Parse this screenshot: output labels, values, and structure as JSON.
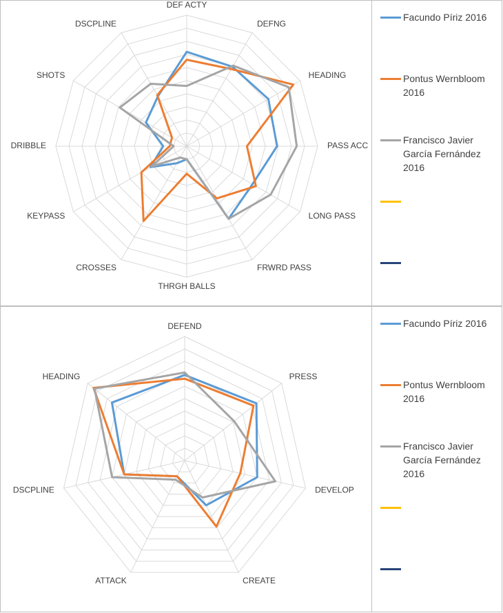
{
  "chart_data": [
    {
      "type": "radar",
      "categories": [
        "DEF ACTY",
        "DEFNG",
        "HEADING",
        "PASS ACC",
        "LONG PASS",
        "FRWRD PASS",
        "THRGH BALLS",
        "CROSSES",
        "KEYPASS",
        "DRIBBLE",
        "SHOTS",
        "DSCPLINE"
      ],
      "rlim": [
        0,
        10
      ],
      "rticks": [
        1,
        2,
        3,
        4,
        5,
        6,
        7,
        8,
        9,
        10
      ],
      "grid": true,
      "legend": "right",
      "series": [
        {
          "name": "Facundo Píriz 2016",
          "color": "#5b9bd5",
          "values": [
            7.2,
            7.0,
            7.2,
            6.9,
            5.8,
            6.4,
            1.0,
            1.5,
            3.2,
            1.8,
            3.6,
            4.4
          ]
        },
        {
          "name": "Pontus Wernbloom 2016",
          "color": "#ed7d31",
          "values": [
            6.6,
            6.8,
            9.4,
            4.6,
            6.1,
            4.6,
            2.1,
            6.6,
            4.0,
            1.3,
            1.3,
            4.5
          ]
        },
        {
          "name": "Francisco Javier García Fernández 2016",
          "color": "#a5a5a5",
          "values": [
            4.6,
            7.1,
            9.0,
            8.4,
            7.4,
            6.4,
            1.0,
            1.0,
            3.1,
            1.0,
            5.9,
            5.5
          ]
        },
        {
          "name": null,
          "color": "#ffc000",
          "values": [
            null,
            null,
            null,
            null,
            null,
            null,
            null,
            null,
            null,
            null,
            null,
            null
          ]
        },
        {
          "name": null,
          "color": "#264478",
          "values": [
            null,
            null,
            null,
            null,
            null,
            null,
            null,
            null,
            null,
            null,
            null,
            null
          ]
        }
      ]
    },
    {
      "type": "radar",
      "categories": [
        "DEFEND",
        "PRESS",
        "DEVELOP",
        "CREATE",
        "ATTACK",
        "DSCPLINE",
        "HEADING"
      ],
      "rlim": [
        0,
        10
      ],
      "rticks": [
        1,
        2,
        3,
        4,
        5,
        6,
        7,
        8,
        9,
        10
      ],
      "grid": true,
      "legend": "right",
      "series": [
        {
          "name": "Facundo Píriz 2016",
          "color": "#5b9bd5",
          "values": [
            6.9,
            7.4,
            6.0,
            4.0,
            1.4,
            5.0,
            7.5
          ]
        },
        {
          "name": "Pontus Wernbloom 2016",
          "color": "#ed7d31",
          "values": [
            6.6,
            7.1,
            4.6,
            5.9,
            1.4,
            5.0,
            9.4
          ]
        },
        {
          "name": "Francisco Javier García Fernández 2016",
          "color": "#a5a5a5",
          "values": [
            7.1,
            5.1,
            7.5,
            3.3,
            1.7,
            6.0,
            9.3
          ]
        },
        {
          "name": null,
          "color": "#ffc000",
          "values": [
            null,
            null,
            null,
            null,
            null,
            null,
            null
          ]
        },
        {
          "name": null,
          "color": "#264478",
          "values": [
            null,
            null,
            null,
            null,
            null,
            null,
            null
          ]
        }
      ]
    }
  ]
}
